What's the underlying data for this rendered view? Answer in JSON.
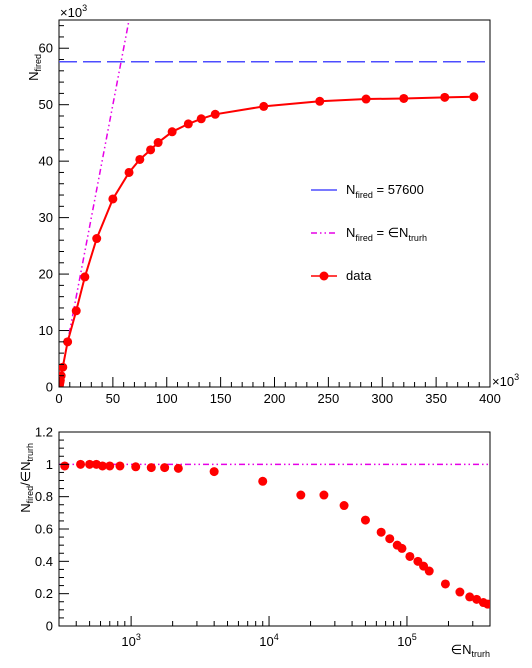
{
  "chart_data": [
    {
      "type": "line",
      "ylabel_main": "N",
      "ylabel_sub": "fired",
      "ylabel_multiplier_base": "×10",
      "ylabel_multiplier_exp": "3",
      "xlabel_multiplier_base": "×10",
      "xlabel_multiplier_exp": "3",
      "xlim": [
        0,
        400
      ],
      "ylim": [
        0,
        65
      ],
      "x_ticks": [
        0,
        50,
        100,
        150,
        200,
        250,
        300,
        350,
        400
      ],
      "x_tick_labels": [
        "0",
        "50",
        "100",
        "150",
        "200",
        "250",
        "300",
        "350",
        "400"
      ],
      "y_ticks": [
        0,
        10,
        20,
        30,
        40,
        50,
        60
      ],
      "y_tick_labels": [
        "0",
        "10",
        "20",
        "30",
        "40",
        "50",
        "60"
      ],
      "legend_position": "center-right",
      "legend": [
        {
          "main": "N",
          "sub": "fired",
          "tail": " = 57600",
          "color": "#4d4dff",
          "style": "dashed"
        },
        {
          "main": "N",
          "sub": "fired",
          "tail": " = ∈N",
          "sub2": "trurh",
          "color": "#e600e6",
          "style": "dash-dot"
        },
        {
          "main": "data",
          "color": "#ff0000",
          "style": "marker-line"
        }
      ],
      "series": [
        {
          "kind": "hline",
          "y": 57.6,
          "color": "#4d4dff"
        },
        {
          "kind": "proportional",
          "slope": 1.0,
          "color": "#e600e6"
        },
        {
          "kind": "data",
          "color": "#ff0000",
          "x": [
            0.3,
            0.5,
            0.7,
            0.9,
            1.2,
            2.0,
            3.5,
            8.0,
            16.0,
            24.0,
            35.0,
            50.0,
            65.0,
            75.0,
            85.0,
            92.0,
            105.0,
            120.0,
            132.0,
            145.0,
            190.0,
            242.0,
            285.0,
            320.0,
            358.0,
            385.0
          ],
          "y": [
            0.3,
            0.5,
            0.7,
            0.9,
            1.2,
            2.0,
            3.5,
            8.0,
            13.5,
            19.5,
            26.3,
            33.3,
            38.0,
            40.3,
            42.0,
            43.3,
            45.2,
            46.6,
            47.5,
            48.3,
            49.7,
            50.6,
            51.0,
            51.1,
            51.3,
            51.4
          ]
        }
      ]
    },
    {
      "type": "scatter",
      "ylabel_main": "N",
      "ylabel_sub": "fired",
      "ylabel_mid": "/∈N",
      "ylabel_sub2": "trurh",
      "xlabel_main": "∈N",
      "xlabel_sub": "trurh",
      "xscale": "log",
      "xlim": [
        300,
        400000
      ],
      "ylim": [
        0,
        1.2
      ],
      "x_major_ticks": [
        1000,
        10000,
        100000
      ],
      "x_tick_labels": [
        {
          "base": "10",
          "exp": "3"
        },
        {
          "base": "10",
          "exp": "4"
        },
        {
          "base": "10",
          "exp": "5"
        }
      ],
      "y_ticks": [
        0,
        0.2,
        0.4,
        0.6,
        0.8,
        1.0,
        1.2
      ],
      "y_tick_labels": [
        "0",
        "0.2",
        "0.4",
        "0.6",
        "0.8",
        "1",
        "1.2"
      ],
      "series": [
        {
          "kind": "hline",
          "y": 1.0,
          "color": "#e600e6"
        },
        {
          "kind": "data",
          "color": "#ff0000",
          "x": [
            330,
            430,
            500,
            560,
            620,
            700,
            830,
            1080,
            1400,
            1750,
            2200,
            4000,
            9000,
            17000,
            25000,
            35000,
            50000,
            65000,
            75000,
            85000,
            92000,
            105000,
            120000,
            132000,
            145000,
            190000,
            242000,
            285000,
            320000,
            358000,
            385000
          ],
          "y": [
            0.99,
            1.0,
            1.0,
            1.0,
            0.99,
            0.99,
            0.99,
            0.985,
            0.98,
            0.98,
            0.975,
            0.955,
            0.895,
            0.81,
            0.81,
            0.745,
            0.655,
            0.58,
            0.54,
            0.5,
            0.48,
            0.43,
            0.4,
            0.37,
            0.34,
            0.26,
            0.21,
            0.18,
            0.165,
            0.145,
            0.135
          ]
        }
      ]
    }
  ]
}
